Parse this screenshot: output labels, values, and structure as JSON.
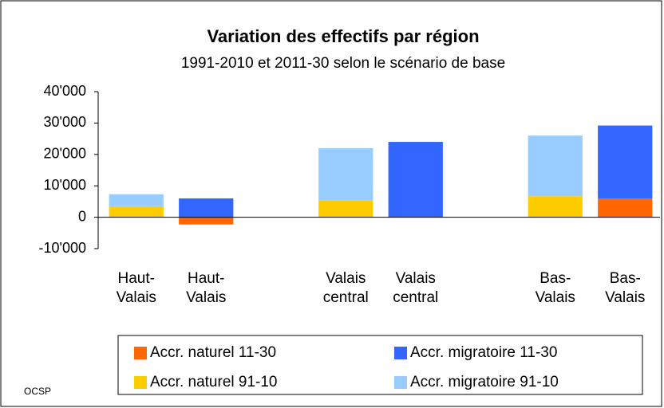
{
  "chart_data": {
    "type": "stacked_bar",
    "title": "Variation des effectifs par région",
    "subtitle": "1991-2010 et 2011-30 selon le scénario de base",
    "categories": [
      "Haut-Valais",
      "Haut-Valais",
      null,
      "Valais central",
      "Valais central",
      null,
      "Bas-Valais",
      "Bas-Valais"
    ],
    "series": [
      {
        "name": "Accr. naturel 11-30",
        "color": "#ff6600",
        "values": [
          null,
          -2300,
          null,
          null,
          0,
          null,
          null,
          6000
        ]
      },
      {
        "name": "Accr. migratoire 11-30",
        "color": "#3366ff",
        "values": [
          null,
          6000,
          null,
          null,
          24000,
          null,
          null,
          23200
        ]
      },
      {
        "name": "Accr. naturel 91-10",
        "color": "#ffcc00",
        "values": [
          3500,
          null,
          null,
          5300,
          null,
          null,
          6700,
          null
        ]
      },
      {
        "name": "Accr. migratoire 91-10",
        "color": "#99ccff",
        "values": [
          3800,
          null,
          null,
          16700,
          null,
          null,
          19300,
          null
        ]
      }
    ],
    "ylim": [
      -10000,
      40000
    ],
    "yticks": [
      {
        "value": -10000,
        "label": "-10'000"
      },
      0,
      {
        "value": 10000,
        "label": "10'000"
      },
      {
        "value": 20000,
        "label": "20'000"
      },
      {
        "value": 30000,
        "label": "30'000"
      },
      {
        "value": 40000,
        "label": "40'000"
      }
    ],
    "grid": false,
    "legend": "bottom",
    "source": "OCSP"
  }
}
